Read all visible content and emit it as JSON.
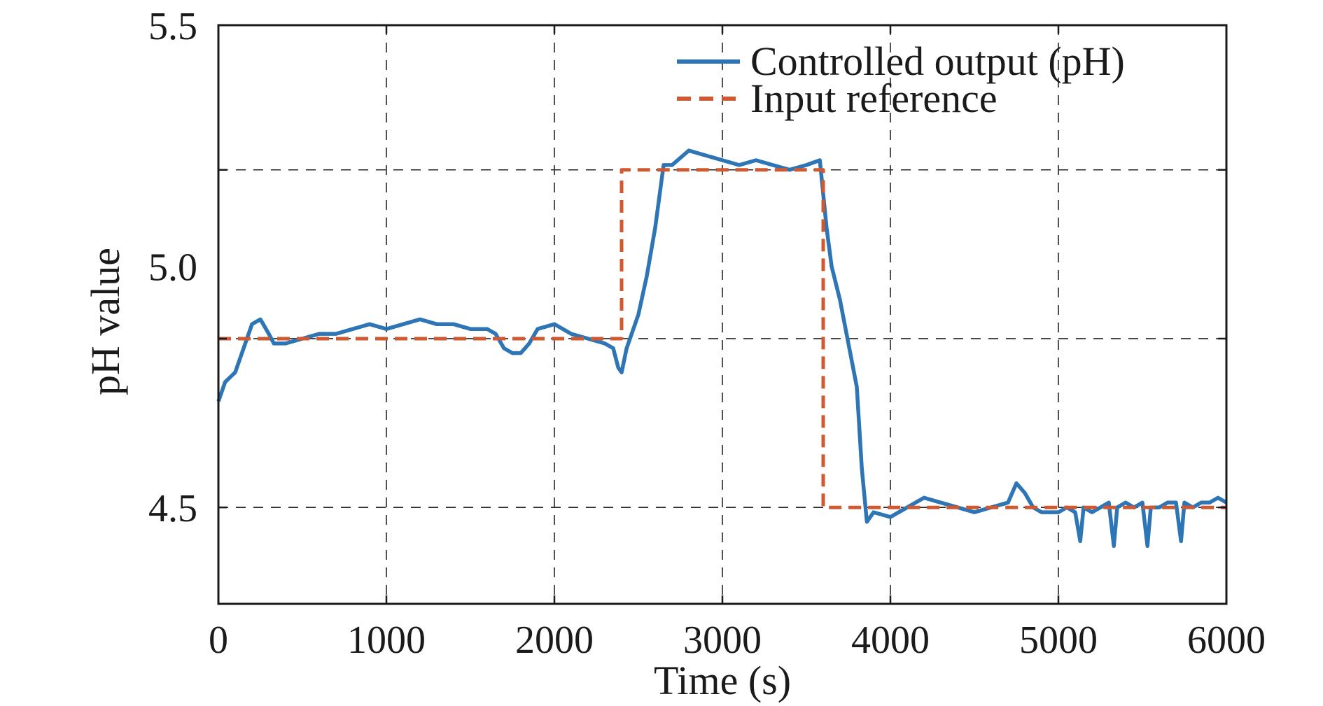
{
  "chart_data": {
    "type": "line",
    "xlabel": "Time (s)",
    "ylabel": "pH value",
    "xlim": [
      0,
      6000
    ],
    "ylim": [
      4.3,
      5.5
    ],
    "xticks": [
      0,
      1000,
      2000,
      3000,
      4000,
      5000,
      6000
    ],
    "xtick_labels": [
      "0",
      "1000",
      "2000",
      "3000",
      "4000",
      "5000",
      "6000"
    ],
    "yticks": [
      4.5,
      5.0,
      5.5
    ],
    "ytick_labels": [
      "4.5",
      "5.0",
      "5.5"
    ],
    "grid_y": [
      4.5,
      4.85,
      5.2
    ],
    "grid": true,
    "legend_position": "top-right",
    "series": [
      {
        "name": "Controlled output (pH)",
        "color": "#2e75b6",
        "style": "solid",
        "x": [
          0,
          40,
          100,
          150,
          200,
          250,
          300,
          330,
          400,
          500,
          600,
          700,
          800,
          900,
          1000,
          1100,
          1200,
          1300,
          1400,
          1500,
          1600,
          1650,
          1700,
          1750,
          1800,
          1850,
          1900,
          2000,
          2100,
          2200,
          2300,
          2350,
          2380,
          2400,
          2430,
          2460,
          2500,
          2550,
          2600,
          2650,
          2700,
          2800,
          2900,
          3000,
          3100,
          3200,
          3300,
          3400,
          3500,
          3580,
          3620,
          3650,
          3700,
          3750,
          3800,
          3830,
          3860,
          3900,
          4000,
          4100,
          4200,
          4300,
          4400,
          4500,
          4600,
          4700,
          4750,
          4800,
          4850,
          4900,
          5000,
          5050,
          5100,
          5130,
          5150,
          5200,
          5250,
          5300,
          5330,
          5350,
          5400,
          5450,
          5500,
          5530,
          5550,
          5600,
          5650,
          5700,
          5730,
          5750,
          5800,
          5850,
          5900,
          5950,
          6000
        ],
        "y": [
          4.72,
          4.76,
          4.78,
          4.83,
          4.88,
          4.89,
          4.86,
          4.84,
          4.84,
          4.85,
          4.86,
          4.86,
          4.87,
          4.88,
          4.87,
          4.88,
          4.89,
          4.88,
          4.88,
          4.87,
          4.87,
          4.86,
          4.83,
          4.82,
          4.82,
          4.84,
          4.87,
          4.88,
          4.86,
          4.85,
          4.84,
          4.83,
          4.79,
          4.78,
          4.83,
          4.86,
          4.9,
          4.98,
          5.08,
          5.21,
          5.21,
          5.24,
          5.23,
          5.22,
          5.21,
          5.22,
          5.21,
          5.2,
          5.21,
          5.22,
          5.08,
          5.0,
          4.93,
          4.84,
          4.75,
          4.58,
          4.47,
          4.49,
          4.48,
          4.5,
          4.52,
          4.51,
          4.5,
          4.49,
          4.5,
          4.51,
          4.55,
          4.53,
          4.5,
          4.49,
          4.49,
          4.5,
          4.49,
          4.43,
          4.5,
          4.49,
          4.5,
          4.51,
          4.42,
          4.5,
          4.51,
          4.5,
          4.51,
          4.42,
          4.5,
          4.5,
          4.51,
          4.51,
          4.43,
          4.51,
          4.5,
          4.51,
          4.51,
          4.52,
          4.51
        ]
      },
      {
        "name": "Input reference",
        "color": "#cf5a32",
        "style": "dashed",
        "x": [
          0,
          2400,
          2400,
          3600,
          3600,
          6000
        ],
        "y": [
          4.85,
          4.85,
          5.2,
          5.2,
          4.5,
          4.5
        ]
      }
    ]
  }
}
